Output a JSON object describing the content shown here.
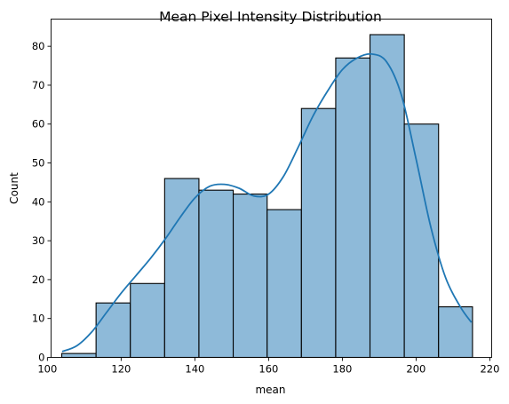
{
  "chart_data": {
    "type": "bar",
    "title": "Mean Pixel Intensity Distribution",
    "xlabel": "mean",
    "ylabel": "Count",
    "xlim": [
      101,
      220.5
    ],
    "ylim": [
      0,
      87
    ],
    "x_ticks": [
      100,
      120,
      140,
      160,
      180,
      200,
      220
    ],
    "y_ticks": [
      0,
      10,
      20,
      30,
      40,
      50,
      60,
      70,
      80
    ],
    "grid": false,
    "bins": [
      {
        "start": 103.9,
        "end": 113.2,
        "count": 1
      },
      {
        "start": 113.2,
        "end": 122.5,
        "count": 14
      },
      {
        "start": 122.5,
        "end": 131.8,
        "count": 19
      },
      {
        "start": 131.8,
        "end": 141.1,
        "count": 46
      },
      {
        "start": 141.1,
        "end": 150.4,
        "count": 43
      },
      {
        "start": 150.4,
        "end": 159.6,
        "count": 42
      },
      {
        "start": 159.6,
        "end": 168.9,
        "count": 38
      },
      {
        "start": 168.9,
        "end": 178.2,
        "count": 64
      },
      {
        "start": 178.2,
        "end": 187.5,
        "count": 77
      },
      {
        "start": 187.5,
        "end": 196.8,
        "count": 83
      },
      {
        "start": 196.8,
        "end": 206.1,
        "count": 60
      },
      {
        "start": 206.1,
        "end": 215.3,
        "count": 13
      }
    ],
    "kde": {
      "x": [
        104,
        108,
        112,
        116,
        120,
        124,
        128,
        132,
        136,
        140,
        144,
        148,
        152,
        156,
        160,
        164,
        168,
        172,
        176,
        180,
        184,
        188,
        192,
        196,
        200,
        204,
        208,
        212,
        215
      ],
      "y": [
        1.5,
        3,
        6.5,
        11.5,
        16.5,
        21,
        25.5,
        30.5,
        36,
        41,
        44,
        44.5,
        43.5,
        41.5,
        42,
        46.5,
        54,
        62,
        68.5,
        74,
        77,
        78,
        76,
        67.5,
        51,
        33.5,
        20.5,
        13,
        9
      ]
    },
    "colors": {
      "bar_fill": "#8ebad9",
      "bar_edge": "#000000",
      "kde_line": "#1f77b4"
    }
  }
}
